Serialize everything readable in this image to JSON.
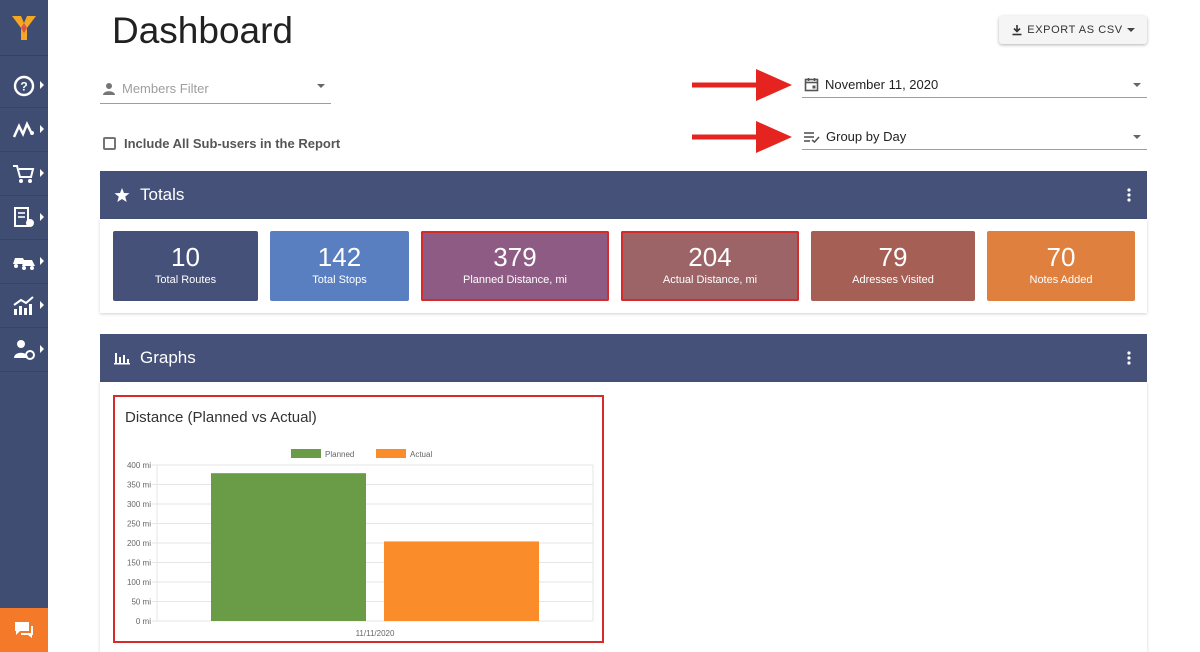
{
  "header": {
    "title": "Dashboard",
    "export_label": "EXPORT AS CSV"
  },
  "filters": {
    "members_placeholder": "Members Filter",
    "include_subusers_label": "Include All Sub-users in the Report",
    "date_value": "November 11, 2020",
    "group_value": "Group by Day"
  },
  "totals": {
    "title": "Totals",
    "cards": [
      {
        "value": "10",
        "label": "Total Routes",
        "color": "#455178"
      },
      {
        "value": "142",
        "label": "Total Stops",
        "color": "#5a7fc1"
      },
      {
        "value": "379",
        "label": "Planned Distance, mi",
        "color": "#8e5b84"
      },
      {
        "value": "204",
        "label": "Actual Distance, mi",
        "color": "#9c6466"
      },
      {
        "value": "79",
        "label": "Adresses Visited",
        "color": "#a55f55"
      },
      {
        "value": "70",
        "label": "Notes Added",
        "color": "#e0803f"
      }
    ]
  },
  "graphs": {
    "title": "Graphs",
    "chart_title": "Distance (Planned vs Actual)"
  },
  "chart_data": {
    "type": "bar",
    "categories": [
      "11/11/2020"
    ],
    "series": [
      {
        "name": "Planned",
        "values": [
          379
        ],
        "color": "#6a9b47"
      },
      {
        "name": "Actual",
        "values": [
          204
        ],
        "color": "#fa8c2a"
      }
    ],
    "ylim": [
      0,
      400
    ],
    "yticks": [
      "0 mi",
      "50 mi",
      "100 mi",
      "150 mi",
      "200 mi",
      "250 mi",
      "300 mi",
      "350 mi",
      "400 mi"
    ],
    "legend": "top-center",
    "grid": true
  },
  "colors": {
    "sidebar": "#3f4d73",
    "panel_header": "#455178",
    "highlight": "#d62b2b",
    "chat": "#f47a2a"
  }
}
